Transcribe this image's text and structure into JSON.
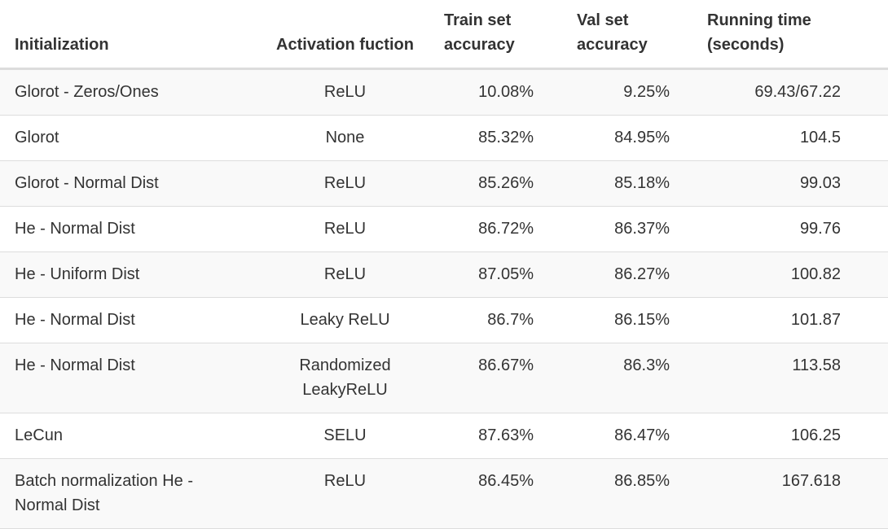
{
  "table": {
    "headers": {
      "initialization": "Initialization",
      "activation": "Activation fuction",
      "train": "Train set accuracy",
      "val": "Val set accuracy",
      "time": "Running time (seconds)"
    },
    "rows": [
      {
        "initialization": "Glorot - Zeros/Ones",
        "activation": "ReLU",
        "train": "10.08%",
        "val": "9.25%",
        "time": "69.43/67.22"
      },
      {
        "initialization": "Glorot",
        "activation": "None",
        "train": "85.32%",
        "val": "84.95%",
        "time": "104.5"
      },
      {
        "initialization": "Glorot - Normal Dist",
        "activation": "ReLU",
        "train": "85.26%",
        "val": "85.18%",
        "time": "99.03"
      },
      {
        "initialization": "He - Normal Dist",
        "activation": "ReLU",
        "train": "86.72%",
        "val": "86.37%",
        "time": "99.76"
      },
      {
        "initialization": "He - Uniform Dist",
        "activation": "ReLU",
        "train": "87.05%",
        "val": "86.27%",
        "time": "100.82"
      },
      {
        "initialization": "He - Normal Dist",
        "activation": "Leaky ReLU",
        "train": "86.7%",
        "val": "86.15%",
        "time": "101.87"
      },
      {
        "initialization": "He - Normal Dist",
        "activation": "Randomized LeakyReLU",
        "train": "86.67%",
        "val": "86.3%",
        "time": "113.58"
      },
      {
        "initialization": "LeCun",
        "activation": "SELU",
        "train": "87.63%",
        "val": "86.47%",
        "time": "106.25"
      },
      {
        "initialization": "Batch normalization He - Normal Dist",
        "activation": "ReLU",
        "train": "86.45%",
        "val": "86.85%",
        "time": "167.618"
      }
    ]
  }
}
